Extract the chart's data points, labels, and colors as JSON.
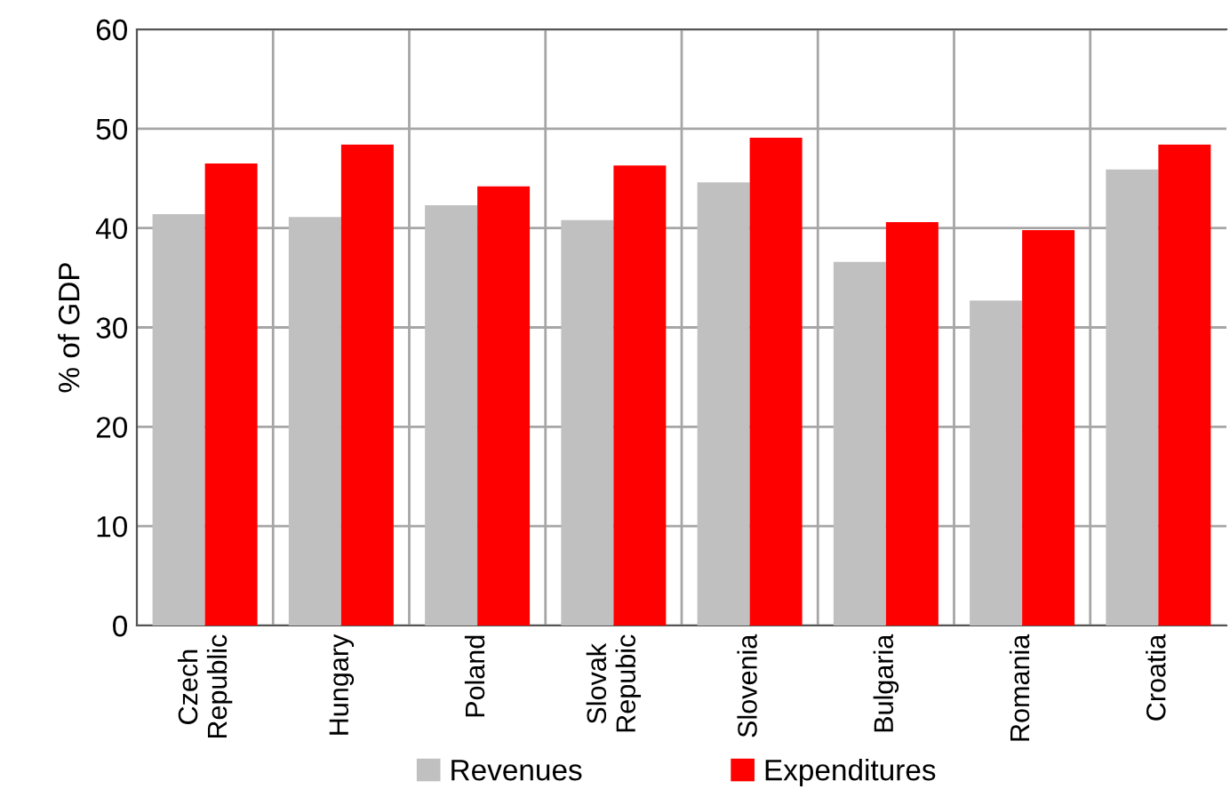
{
  "chart_data": {
    "type": "bar",
    "ylabel": "% of GDP",
    "categories": [
      "Czech\nRepublic",
      "Hungary",
      "Poland",
      "Slovak\nRepubic",
      "Slovenia",
      "Bulgaria",
      "Romania",
      "Croatia"
    ],
    "series": [
      {
        "name": "Revenues",
        "color": "#c0c0c0",
        "values": [
          41.4,
          41.1,
          42.3,
          40.8,
          44.6,
          36.6,
          32.7,
          45.9
        ]
      },
      {
        "name": "Expenditures",
        "color": "#ff0000",
        "values": [
          46.5,
          48.4,
          44.2,
          46.3,
          49.1,
          40.6,
          39.8,
          48.4
        ]
      }
    ],
    "ylim": [
      0,
      60
    ],
    "yticks": [
      0,
      10,
      20,
      30,
      40,
      50,
      60
    ],
    "grid": true,
    "legend": "bottom"
  }
}
